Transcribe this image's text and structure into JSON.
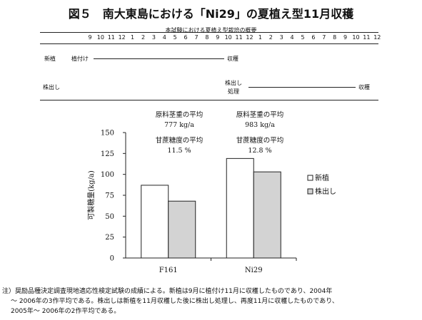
{
  "figure_title": "図５　南大東島における「Ni29」の夏植え型11月収穫",
  "schedule": {
    "title": "本試験における夏植え型栽培の概要",
    "months": [
      "9",
      "10",
      "11",
      "12",
      "1",
      "2",
      "3",
      "4",
      "5",
      "6",
      "7",
      "8",
      "9",
      "10",
      "11",
      "12",
      "1",
      "2",
      "3",
      "4",
      "5",
      "6",
      "7",
      "8",
      "9",
      "10",
      "11",
      "12"
    ],
    "rows": [
      {
        "label": "新植",
        "start_text": "植付け",
        "end_text": "収穫"
      },
      {
        "label": "株出し",
        "start_text_1": "株出し",
        "start_text_2": "処理",
        "end_text": "収穫"
      }
    ]
  },
  "annotations": {
    "f161_weight_title": "原料茎重の平均",
    "f161_weight": "777 kg/a",
    "f161_sugar_title": "甘蔗糖度の平均",
    "f161_sugar": "11.5 %",
    "ni29_weight_title": "原料茎重の平均",
    "ni29_weight": "983 kg/a",
    "ni29_sugar_title": "甘蔗糖度の平均",
    "ni29_sugar": "12.8 %"
  },
  "chart_data": {
    "type": "bar",
    "categories": [
      "F161",
      "Ni29"
    ],
    "series": [
      {
        "name": "新植",
        "values": [
          87,
          119
        ],
        "color": "#ffffff"
      },
      {
        "name": "株出し",
        "values": [
          68,
          103
        ],
        "color": "#d3d3d3"
      }
    ],
    "ylabel": "可製糖量(kg/a)",
    "ylim": [
      0,
      150
    ],
    "yticks": [
      "0",
      "25",
      "50",
      "75",
      "100",
      "125",
      "150"
    ],
    "legend_position": "right"
  },
  "note": {
    "line1": "注）奨励品種決定調査現地適応性検定試験の成績による。新植は9月に植付け11月に収穫したものであり、2004年",
    "line2": "～ 2006年の3作平均である。株出しは新植を11月収穫した後に株出し処理し、再度11月に収穫したものであり、",
    "line3": "2005年～ 2006年の2作平均である。"
  }
}
